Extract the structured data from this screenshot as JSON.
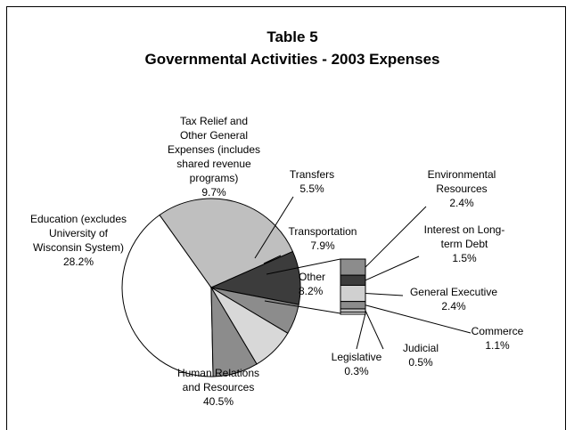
{
  "chart_data": {
    "type": "pie",
    "title": "Table 5",
    "subtitle": "Governmental Activities - 2003 Expenses",
    "slices": [
      {
        "label": [
          "Human Relations",
          "and Resources"
        ],
        "value": 40.5,
        "pct": "40.5%",
        "color": "#ffffff"
      },
      {
        "label": [
          "Education (excludes",
          "University of",
          "Wisconsin System)"
        ],
        "value": 28.2,
        "pct": "28.2%",
        "color": "#bfbfbf"
      },
      {
        "label": [
          "Tax Relief and",
          "Other General",
          "Expenses (includes",
          "shared revenue",
          "programs)"
        ],
        "value": 9.7,
        "pct": "9.7%",
        "color": "#3c3c3c"
      },
      {
        "label": [
          "Transfers"
        ],
        "value": 5.5,
        "pct": "5.5%",
        "color": "#8c8c8c"
      },
      {
        "label": [
          "Transportation"
        ],
        "value": 7.9,
        "pct": "7.9%",
        "color": "#d8d8d8"
      },
      {
        "label": [
          "Other"
        ],
        "value": 8.2,
        "pct": "8.2%",
        "color": "#8c8c8c"
      }
    ],
    "other_breakdown": [
      {
        "label": [
          "Environmental",
          "Resources"
        ],
        "value": 2.4,
        "pct": "2.4%",
        "color": "#8c8c8c"
      },
      {
        "label": [
          "Interest on Long-",
          "term Debt"
        ],
        "value": 1.5,
        "pct": "1.5%",
        "color": "#3c3c3c"
      },
      {
        "label": [
          "General Executive"
        ],
        "value": 2.4,
        "pct": "2.4%",
        "color": "#d0d0d0"
      },
      {
        "label": [
          "Commerce"
        ],
        "value": 1.1,
        "pct": "1.1%",
        "color": "#8c8c8c"
      },
      {
        "label": [
          "Judicial"
        ],
        "value": 0.5,
        "pct": "0.5%",
        "color": "#bfbfbf"
      },
      {
        "label": [
          "Legislative"
        ],
        "value": 0.3,
        "pct": "0.3%",
        "color": "#ffffff"
      }
    ]
  }
}
